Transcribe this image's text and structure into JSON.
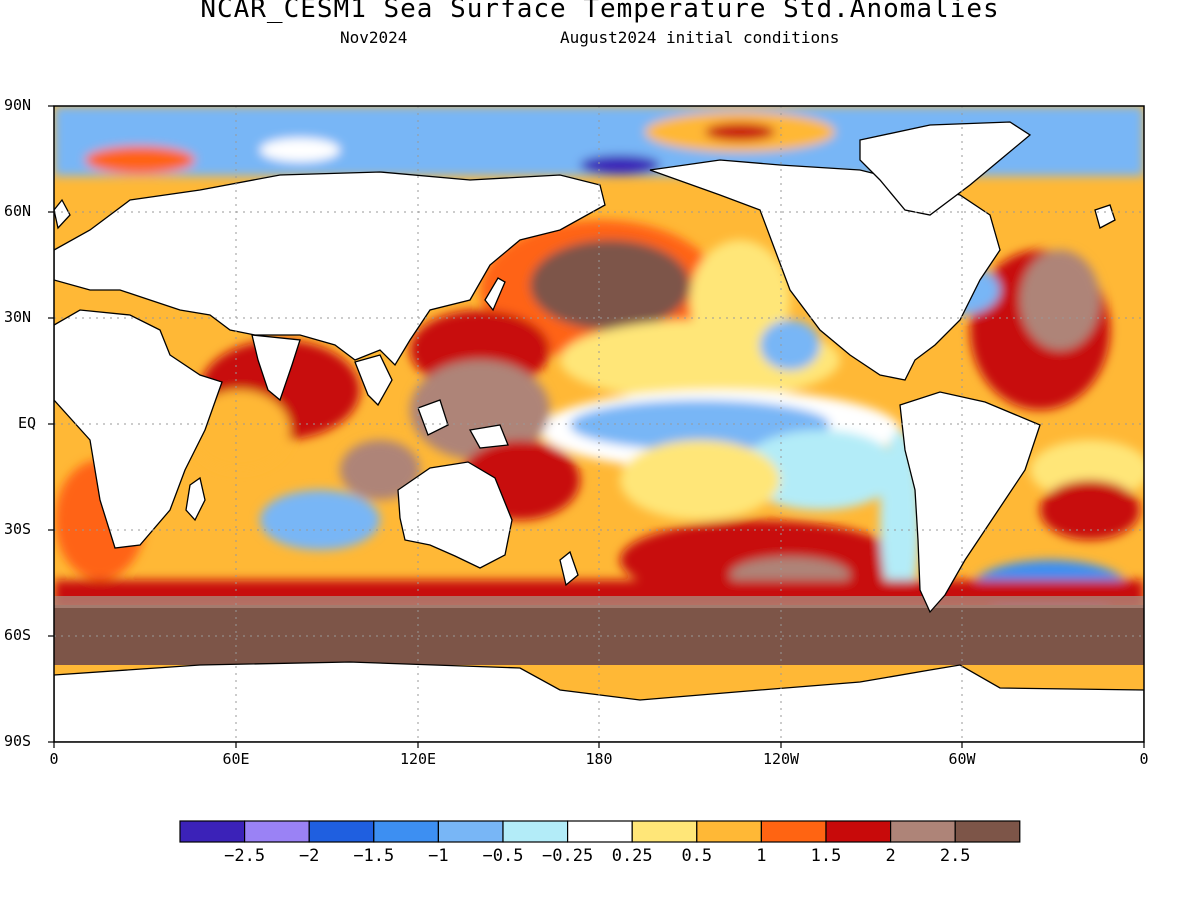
{
  "title": "NCAR_CESM1 Sea Surface Temperature Std.Anomalies",
  "subtitle_left": "Nov2024",
  "subtitle_right": "August2024 initial conditions",
  "map": {
    "projection": "equirectangular",
    "lon_range": [
      0,
      360
    ],
    "lat_range": [
      -90,
      90
    ],
    "grid": "dotted",
    "lat_ticks": [
      {
        "lat": 90,
        "label": "90N"
      },
      {
        "lat": 60,
        "label": "60N"
      },
      {
        "lat": 30,
        "label": "30N"
      },
      {
        "lat": 0,
        "label": "EQ"
      },
      {
        "lat": -30,
        "label": "30S"
      },
      {
        "lat": -60,
        "label": "60S"
      },
      {
        "lat": -90,
        "label": "90S"
      }
    ],
    "lon_ticks": [
      {
        "lon": 0,
        "label": "0"
      },
      {
        "lon": 60,
        "label": "60E"
      },
      {
        "lon": 120,
        "label": "120E"
      },
      {
        "lon": 180,
        "label": "180"
      },
      {
        "lon": 240,
        "label": "120W"
      },
      {
        "lon": 300,
        "label": "60W"
      },
      {
        "lon": 360,
        "label": "0"
      }
    ]
  },
  "colorbar": {
    "colors": [
      "#3b22b8",
      "#9a82f5",
      "#1f5fe0",
      "#3d8ff2",
      "#78b6f6",
      "#b3ecf8",
      "#ffffff",
      "#ffe678",
      "#ffb836",
      "#ff6412",
      "#c80a0a",
      "#ae8478",
      "#7d5548"
    ],
    "labels": [
      "−2.5",
      "−2",
      "−1.5",
      "−1",
      "−0.5",
      "−0.25",
      "0.25",
      "0.5",
      "1",
      "1.5",
      "2",
      "2.5"
    ]
  }
}
